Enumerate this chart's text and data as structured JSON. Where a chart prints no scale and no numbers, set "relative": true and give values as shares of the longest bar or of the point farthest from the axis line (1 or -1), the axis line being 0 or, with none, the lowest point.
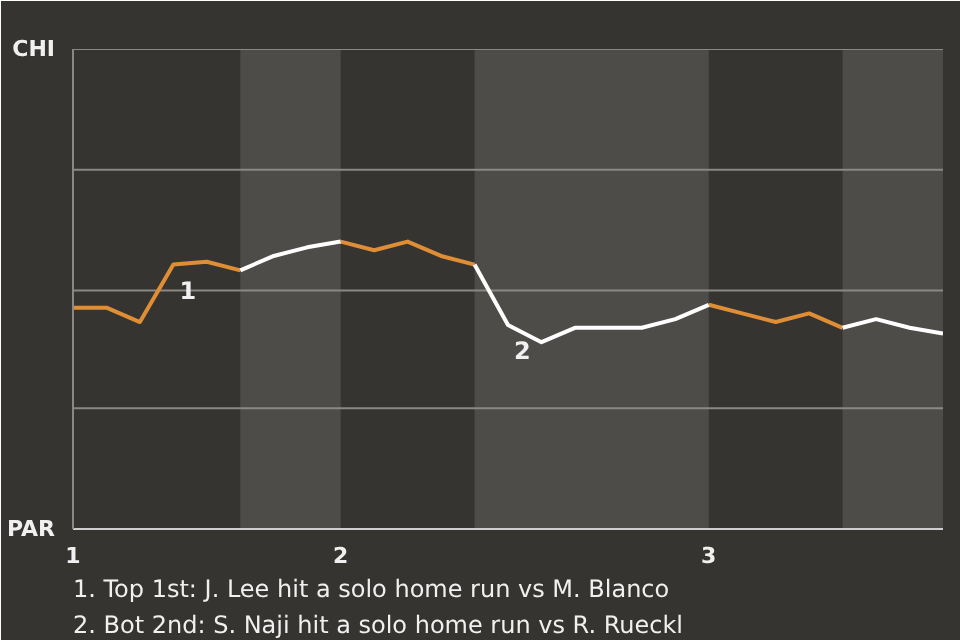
{
  "chart_data": {
    "type": "line",
    "categories": [
      "1",
      null,
      null,
      null,
      null,
      null,
      null,
      null,
      "2",
      null,
      null,
      null,
      null,
      null,
      null,
      null,
      null,
      null,
      null,
      "3",
      null,
      null,
      null,
      null,
      null,
      null,
      null
    ],
    "relative": true,
    "series": [
      {
        "color": "#e08e35",
        "values": [
          0.77,
          0.77,
          0.72,
          0.92,
          0.93,
          0.9,
          null,
          null,
          1,
          0.97,
          1,
          0.95,
          0.92,
          null,
          null,
          null,
          null,
          null,
          null,
          0.78,
          0.75,
          0.72,
          0.75,
          0.7,
          null,
          null,
          null
        ]
      },
      {
        "color": "#ffffff",
        "values": [
          null,
          null,
          null,
          null,
          null,
          0.9,
          0.95,
          0.98,
          1,
          null,
          null,
          null,
          0.92,
          0.71,
          0.65,
          0.7,
          0.7,
          0.7,
          0.73,
          0.78,
          null,
          null,
          null,
          0.7,
          0.73,
          0.7,
          0.68
        ]
      }
    ],
    "marker": "none",
    "line_style": "solid",
    "ref_lines": [
      {
        "axis": "y",
        "value": 0.42,
        "color": "#8a8884"
      },
      {
        "axis": "y",
        "value": 0.83,
        "color": "#8a8884"
      },
      {
        "axis": "y",
        "value": 1.25,
        "color": "#8a8884"
      },
      {
        "axis": "y",
        "value": 1.67,
        "color": "#8a8884"
      }
    ],
    "annotations": [
      {
        "text": "1",
        "y": 0.92
      },
      {
        "text": "2",
        "y": 0.71
      },
      "CHI",
      "PAR",
      "1. Top 1st: J. Lee hit a solo home run vs M. Blanco",
      "2. Bot 2nd: S. Naji hit a solo home run vs R. Rueckl"
    ]
  }
}
